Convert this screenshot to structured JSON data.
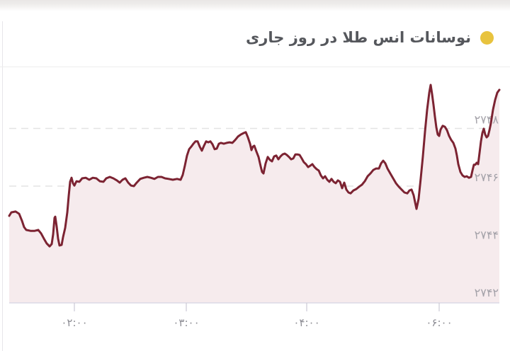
{
  "header": {
    "title": "نوسانات انس طلا در روز جاری",
    "bullet_color": "#e8c33e"
  },
  "chart_data": {
    "type": "area",
    "title": "نوسانات انس طلا در روز جاری",
    "ylim": [
      2742,
      2750
    ],
    "grid": "horizontal-dashed",
    "legend_position": "none",
    "line_color": "#7c2332",
    "fill_color": "#f6ebed",
    "y_ticks": [
      {
        "value": 2748,
        "label": "۲۷۴۸",
        "grid": true
      },
      {
        "value": 2746,
        "label": "۲۷۴۶",
        "grid": true
      },
      {
        "value": 2744,
        "label": "۲۷۴۴",
        "grid": true
      },
      {
        "value": 2742,
        "label": "۲۷۴۲",
        "grid": false
      }
    ],
    "x_ticks": [
      {
        "pos": 105,
        "label": "۰۲:۰۰"
      },
      {
        "pos": 263,
        "label": "۰۳:۰۰"
      },
      {
        "pos": 433,
        "label": "۰۴:۰۰"
      },
      {
        "pos": 620,
        "label": "۰۶:۰۰"
      }
    ],
    "points": [
      [
        13,
        2744.97
      ],
      [
        16,
        2745.09
      ],
      [
        22,
        2745.12
      ],
      [
        27,
        2745.04
      ],
      [
        31,
        2744.8
      ],
      [
        34,
        2744.58
      ],
      [
        37,
        2744.48
      ],
      [
        43,
        2744.45
      ],
      [
        49,
        2744.45
      ],
      [
        54,
        2744.48
      ],
      [
        58,
        2744.36
      ],
      [
        62,
        2744.18
      ],
      [
        66,
        2744.01
      ],
      [
        70,
        2743.91
      ],
      [
        73,
        2743.99
      ],
      [
        75,
        2744.33
      ],
      [
        77,
        2744.9
      ],
      [
        78,
        2744.94
      ],
      [
        80,
        2744.6
      ],
      [
        82,
        2744.18
      ],
      [
        84,
        2743.94
      ],
      [
        87,
        2743.96
      ],
      [
        89,
        2744.23
      ],
      [
        92,
        2744.55
      ],
      [
        95,
        2745.09
      ],
      [
        97,
        2745.66
      ],
      [
        99,
        2746.15
      ],
      [
        101,
        2746.29
      ],
      [
        103,
        2746.1
      ],
      [
        105,
        2746.02
      ],
      [
        108,
        2746.17
      ],
      [
        112,
        2746.15
      ],
      [
        116,
        2746.27
      ],
      [
        121,
        2746.29
      ],
      [
        126,
        2746.22
      ],
      [
        131,
        2746.29
      ],
      [
        136,
        2746.27
      ],
      [
        141,
        2746.17
      ],
      [
        146,
        2746.15
      ],
      [
        150,
        2746.27
      ],
      [
        155,
        2746.32
      ],
      [
        160,
        2746.27
      ],
      [
        165,
        2746.2
      ],
      [
        169,
        2746.12
      ],
      [
        173,
        2746.22
      ],
      [
        177,
        2746.27
      ],
      [
        181,
        2746.12
      ],
      [
        185,
        2746.02
      ],
      [
        189,
        2746.0
      ],
      [
        193,
        2746.12
      ],
      [
        198,
        2746.25
      ],
      [
        203,
        2746.29
      ],
      [
        208,
        2746.32
      ],
      [
        213,
        2746.29
      ],
      [
        218,
        2746.25
      ],
      [
        223,
        2746.32
      ],
      [
        228,
        2746.32
      ],
      [
        233,
        2746.27
      ],
      [
        238,
        2746.25
      ],
      [
        244,
        2746.22
      ],
      [
        250,
        2746.25
      ],
      [
        255,
        2746.22
      ],
      [
        258,
        2746.39
      ],
      [
        261,
        2746.71
      ],
      [
        264,
        2747.06
      ],
      [
        267,
        2747.28
      ],
      [
        270,
        2747.37
      ],
      [
        273,
        2747.47
      ],
      [
        276,
        2747.55
      ],
      [
        279,
        2747.55
      ],
      [
        282,
        2747.37
      ],
      [
        285,
        2747.23
      ],
      [
        288,
        2747.4
      ],
      [
        291,
        2747.55
      ],
      [
        294,
        2747.52
      ],
      [
        297,
        2747.55
      ],
      [
        300,
        2747.45
      ],
      [
        303,
        2747.28
      ],
      [
        306,
        2747.3
      ],
      [
        309,
        2747.47
      ],
      [
        312,
        2747.5
      ],
      [
        316,
        2747.47
      ],
      [
        320,
        2747.5
      ],
      [
        324,
        2747.52
      ],
      [
        328,
        2747.5
      ],
      [
        332,
        2747.6
      ],
      [
        336,
        2747.72
      ],
      [
        340,
        2747.79
      ],
      [
        344,
        2747.84
      ],
      [
        347,
        2747.87
      ],
      [
        350,
        2747.69
      ],
      [
        353,
        2747.47
      ],
      [
        355,
        2747.25
      ],
      [
        357,
        2747.37
      ],
      [
        359,
        2747.4
      ],
      [
        362,
        2747.2
      ],
      [
        365,
        2747.01
      ],
      [
        368,
        2746.69
      ],
      [
        370,
        2746.49
      ],
      [
        372,
        2746.44
      ],
      [
        375,
        2746.79
      ],
      [
        378,
        2747.01
      ],
      [
        381,
        2746.91
      ],
      [
        384,
        2746.86
      ],
      [
        387,
        2747.03
      ],
      [
        390,
        2747.06
      ],
      [
        393,
        2746.93
      ],
      [
        396,
        2747.03
      ],
      [
        399,
        2747.1
      ],
      [
        402,
        2747.13
      ],
      [
        405,
        2747.08
      ],
      [
        408,
        2747.01
      ],
      [
        411,
        2746.93
      ],
      [
        414,
        2746.96
      ],
      [
        417,
        2747.1
      ],
      [
        420,
        2747.1
      ],
      [
        423,
        2747.08
      ],
      [
        426,
        2746.96
      ],
      [
        429,
        2746.83
      ],
      [
        432,
        2746.76
      ],
      [
        435,
        2746.66
      ],
      [
        438,
        2746.71
      ],
      [
        441,
        2746.76
      ],
      [
        444,
        2746.66
      ],
      [
        447,
        2746.59
      ],
      [
        450,
        2746.54
      ],
      [
        453,
        2746.37
      ],
      [
        456,
        2746.27
      ],
      [
        459,
        2746.34
      ],
      [
        462,
        2746.22
      ],
      [
        465,
        2746.15
      ],
      [
        468,
        2746.25
      ],
      [
        471,
        2746.15
      ],
      [
        474,
        2746.1
      ],
      [
        477,
        2746.2
      ],
      [
        480,
        2746.15
      ],
      [
        483,
        2745.93
      ],
      [
        486,
        2746.12
      ],
      [
        489,
        2745.88
      ],
      [
        492,
        2745.78
      ],
      [
        495,
        2745.75
      ],
      [
        499,
        2745.85
      ],
      [
        503,
        2745.9
      ],
      [
        507,
        2745.98
      ],
      [
        511,
        2746.05
      ],
      [
        515,
        2746.17
      ],
      [
        519,
        2746.34
      ],
      [
        523,
        2746.44
      ],
      [
        527,
        2746.56
      ],
      [
        531,
        2746.61
      ],
      [
        535,
        2746.61
      ],
      [
        538,
        2746.79
      ],
      [
        541,
        2746.88
      ],
      [
        544,
        2746.79
      ],
      [
        547,
        2746.61
      ],
      [
        551,
        2746.44
      ],
      [
        555,
        2746.27
      ],
      [
        559,
        2746.1
      ],
      [
        563,
        2745.98
      ],
      [
        567,
        2745.88
      ],
      [
        571,
        2745.78
      ],
      [
        575,
        2745.75
      ],
      [
        578,
        2745.85
      ],
      [
        581,
        2745.88
      ],
      [
        584,
        2745.68
      ],
      [
        586,
        2745.44
      ],
      [
        588,
        2745.21
      ],
      [
        591,
        2745.56
      ],
      [
        594,
        2746.27
      ],
      [
        597,
        2747.03
      ],
      [
        600,
        2747.89
      ],
      [
        603,
        2748.65
      ],
      [
        606,
        2749.24
      ],
      [
        608,
        2749.51
      ],
      [
        610,
        2749.19
      ],
      [
        612,
        2748.82
      ],
      [
        614,
        2748.41
      ],
      [
        616,
        2748.04
      ],
      [
        618,
        2747.79
      ],
      [
        620,
        2747.74
      ],
      [
        622,
        2747.96
      ],
      [
        625,
        2748.09
      ],
      [
        628,
        2748.06
      ],
      [
        631,
        2747.94
      ],
      [
        634,
        2747.74
      ],
      [
        637,
        2747.6
      ],
      [
        640,
        2747.5
      ],
      [
        643,
        2747.3
      ],
      [
        645,
        2747.06
      ],
      [
        647,
        2746.76
      ],
      [
        650,
        2746.49
      ],
      [
        653,
        2746.37
      ],
      [
        656,
        2746.32
      ],
      [
        659,
        2746.34
      ],
      [
        662,
        2746.29
      ],
      [
        665,
        2746.32
      ],
      [
        667,
        2746.54
      ],
      [
        669,
        2746.74
      ],
      [
        671,
        2746.74
      ],
      [
        673,
        2746.81
      ],
      [
        675,
        2746.76
      ],
      [
        677,
        2747.15
      ],
      [
        679,
        2747.55
      ],
      [
        681,
        2747.84
      ],
      [
        683,
        2747.99
      ],
      [
        685,
        2747.79
      ],
      [
        687,
        2747.69
      ],
      [
        689,
        2747.74
      ],
      [
        691,
        2747.94
      ],
      [
        693,
        2748.18
      ],
      [
        696,
        2748.65
      ],
      [
        699,
        2748.99
      ],
      [
        702,
        2749.24
      ],
      [
        705,
        2749.34
      ]
    ]
  }
}
